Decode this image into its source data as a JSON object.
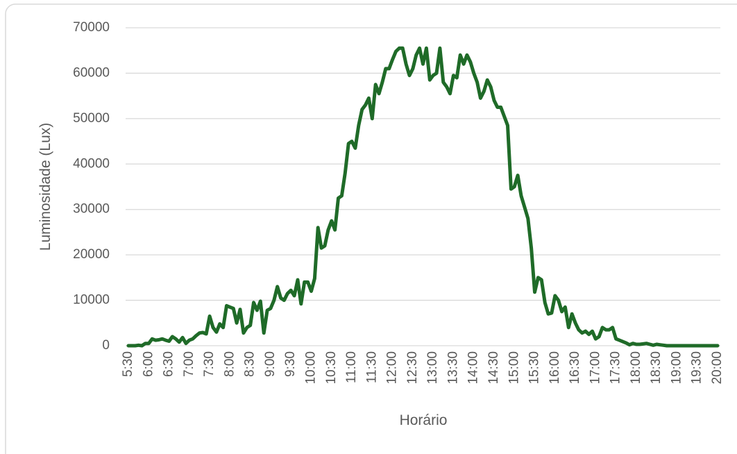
{
  "chart_data": {
    "type": "line",
    "x_label": "Horário",
    "y_label": "Luminosidade (Lux)",
    "color": "#1f6b28",
    "ylim": [
      0,
      70000
    ],
    "yticks": [
      0,
      10000,
      20000,
      30000,
      40000,
      50000,
      60000,
      70000
    ],
    "grid": true,
    "categories": [
      "5:30",
      null,
      null,
      null,
      null,
      null,
      "6:00",
      null,
      null,
      null,
      null,
      null,
      "6:30",
      null,
      null,
      null,
      null,
      null,
      "7:00",
      null,
      null,
      null,
      null,
      null,
      "7:30",
      null,
      null,
      null,
      null,
      null,
      "8:00",
      null,
      null,
      null,
      null,
      null,
      "8:30",
      null,
      null,
      null,
      null,
      null,
      "9:00",
      null,
      null,
      null,
      null,
      null,
      "9:30",
      null,
      null,
      null,
      null,
      null,
      "10:00",
      null,
      null,
      null,
      null,
      null,
      "10:30",
      null,
      null,
      null,
      null,
      null,
      "11:00",
      null,
      null,
      null,
      null,
      null,
      "11:30",
      null,
      null,
      null,
      null,
      null,
      "12:00",
      null,
      null,
      null,
      null,
      null,
      "12:30",
      null,
      null,
      null,
      null,
      null,
      "13:00",
      null,
      null,
      null,
      null,
      null,
      "13:30",
      null,
      null,
      null,
      null,
      null,
      "14:00",
      null,
      null,
      null,
      null,
      null,
      "14:30",
      null,
      null,
      null,
      null,
      null,
      "15:00",
      null,
      null,
      null,
      null,
      null,
      "15:30",
      null,
      null,
      null,
      null,
      null,
      "16:00",
      null,
      null,
      null,
      null,
      null,
      "16:30",
      null,
      null,
      null,
      null,
      null,
      "17:00",
      null,
      null,
      null,
      null,
      null,
      "17:30",
      null,
      null,
      null,
      null,
      null,
      "18:00",
      null,
      null,
      null,
      null,
      null,
      "18:30",
      null,
      null,
      null,
      null,
      null,
      "19:00",
      null,
      null,
      null,
      null,
      null,
      "19:30",
      null,
      null,
      null,
      null,
      null,
      "20:00"
    ],
    "values": [
      0,
      0,
      0,
      100,
      0,
      500,
      500,
      1500,
      1200,
      1300,
      1500,
      1200,
      1000,
      2000,
      1500,
      800,
      1800,
      500,
      1200,
      1500,
      2200,
      2800,
      2900,
      2600,
      6500,
      4000,
      3000,
      4800,
      4000,
      8800,
      8500,
      8200,
      5000,
      8000,
      2800,
      4000,
      4500,
      9500,
      7800,
      9800,
      2800,
      7800,
      8200,
      10000,
      13000,
      10500,
      10000,
      11500,
      12200,
      11000,
      14500,
      9200,
      14000,
      14000,
      12000,
      14800,
      26000,
      21500,
      22000,
      25500,
      27500,
      25500,
      32500,
      33000,
      38000,
      44500,
      45000,
      43500,
      48500,
      52000,
      53000,
      54500,
      50000,
      57500,
      55500,
      58000,
      61000,
      61000,
      63000,
      64800,
      65500,
      65500,
      62000,
      59500,
      61000,
      64000,
      65500,
      62000,
      65500,
      58500,
      59500,
      60000,
      65500,
      58000,
      57000,
      55500,
      59500,
      59000,
      64000,
      62000,
      64000,
      62500,
      60000,
      58000,
      54500,
      56000,
      58500,
      57000,
      54000,
      52500,
      52500,
      50500,
      48500,
      34500,
      35000,
      37500,
      33000,
      30500,
      28000,
      21500,
      11800,
      15000,
      14500,
      9500,
      7000,
      7200,
      11000,
      10000,
      7500,
      8500,
      4000,
      7000,
      5000,
      3500,
      2800,
      3200,
      2500,
      3200,
      1500,
      2000,
      4000,
      3500,
      3500,
      4000,
      1500,
      1200,
      900,
      600,
      200,
      500,
      300,
      300,
      400,
      500,
      300,
      100,
      300,
      200,
      100,
      0,
      0,
      0,
      0,
      0,
      0,
      0,
      0,
      0,
      0,
      0,
      0,
      0,
      0,
      0,
      0
    ]
  }
}
